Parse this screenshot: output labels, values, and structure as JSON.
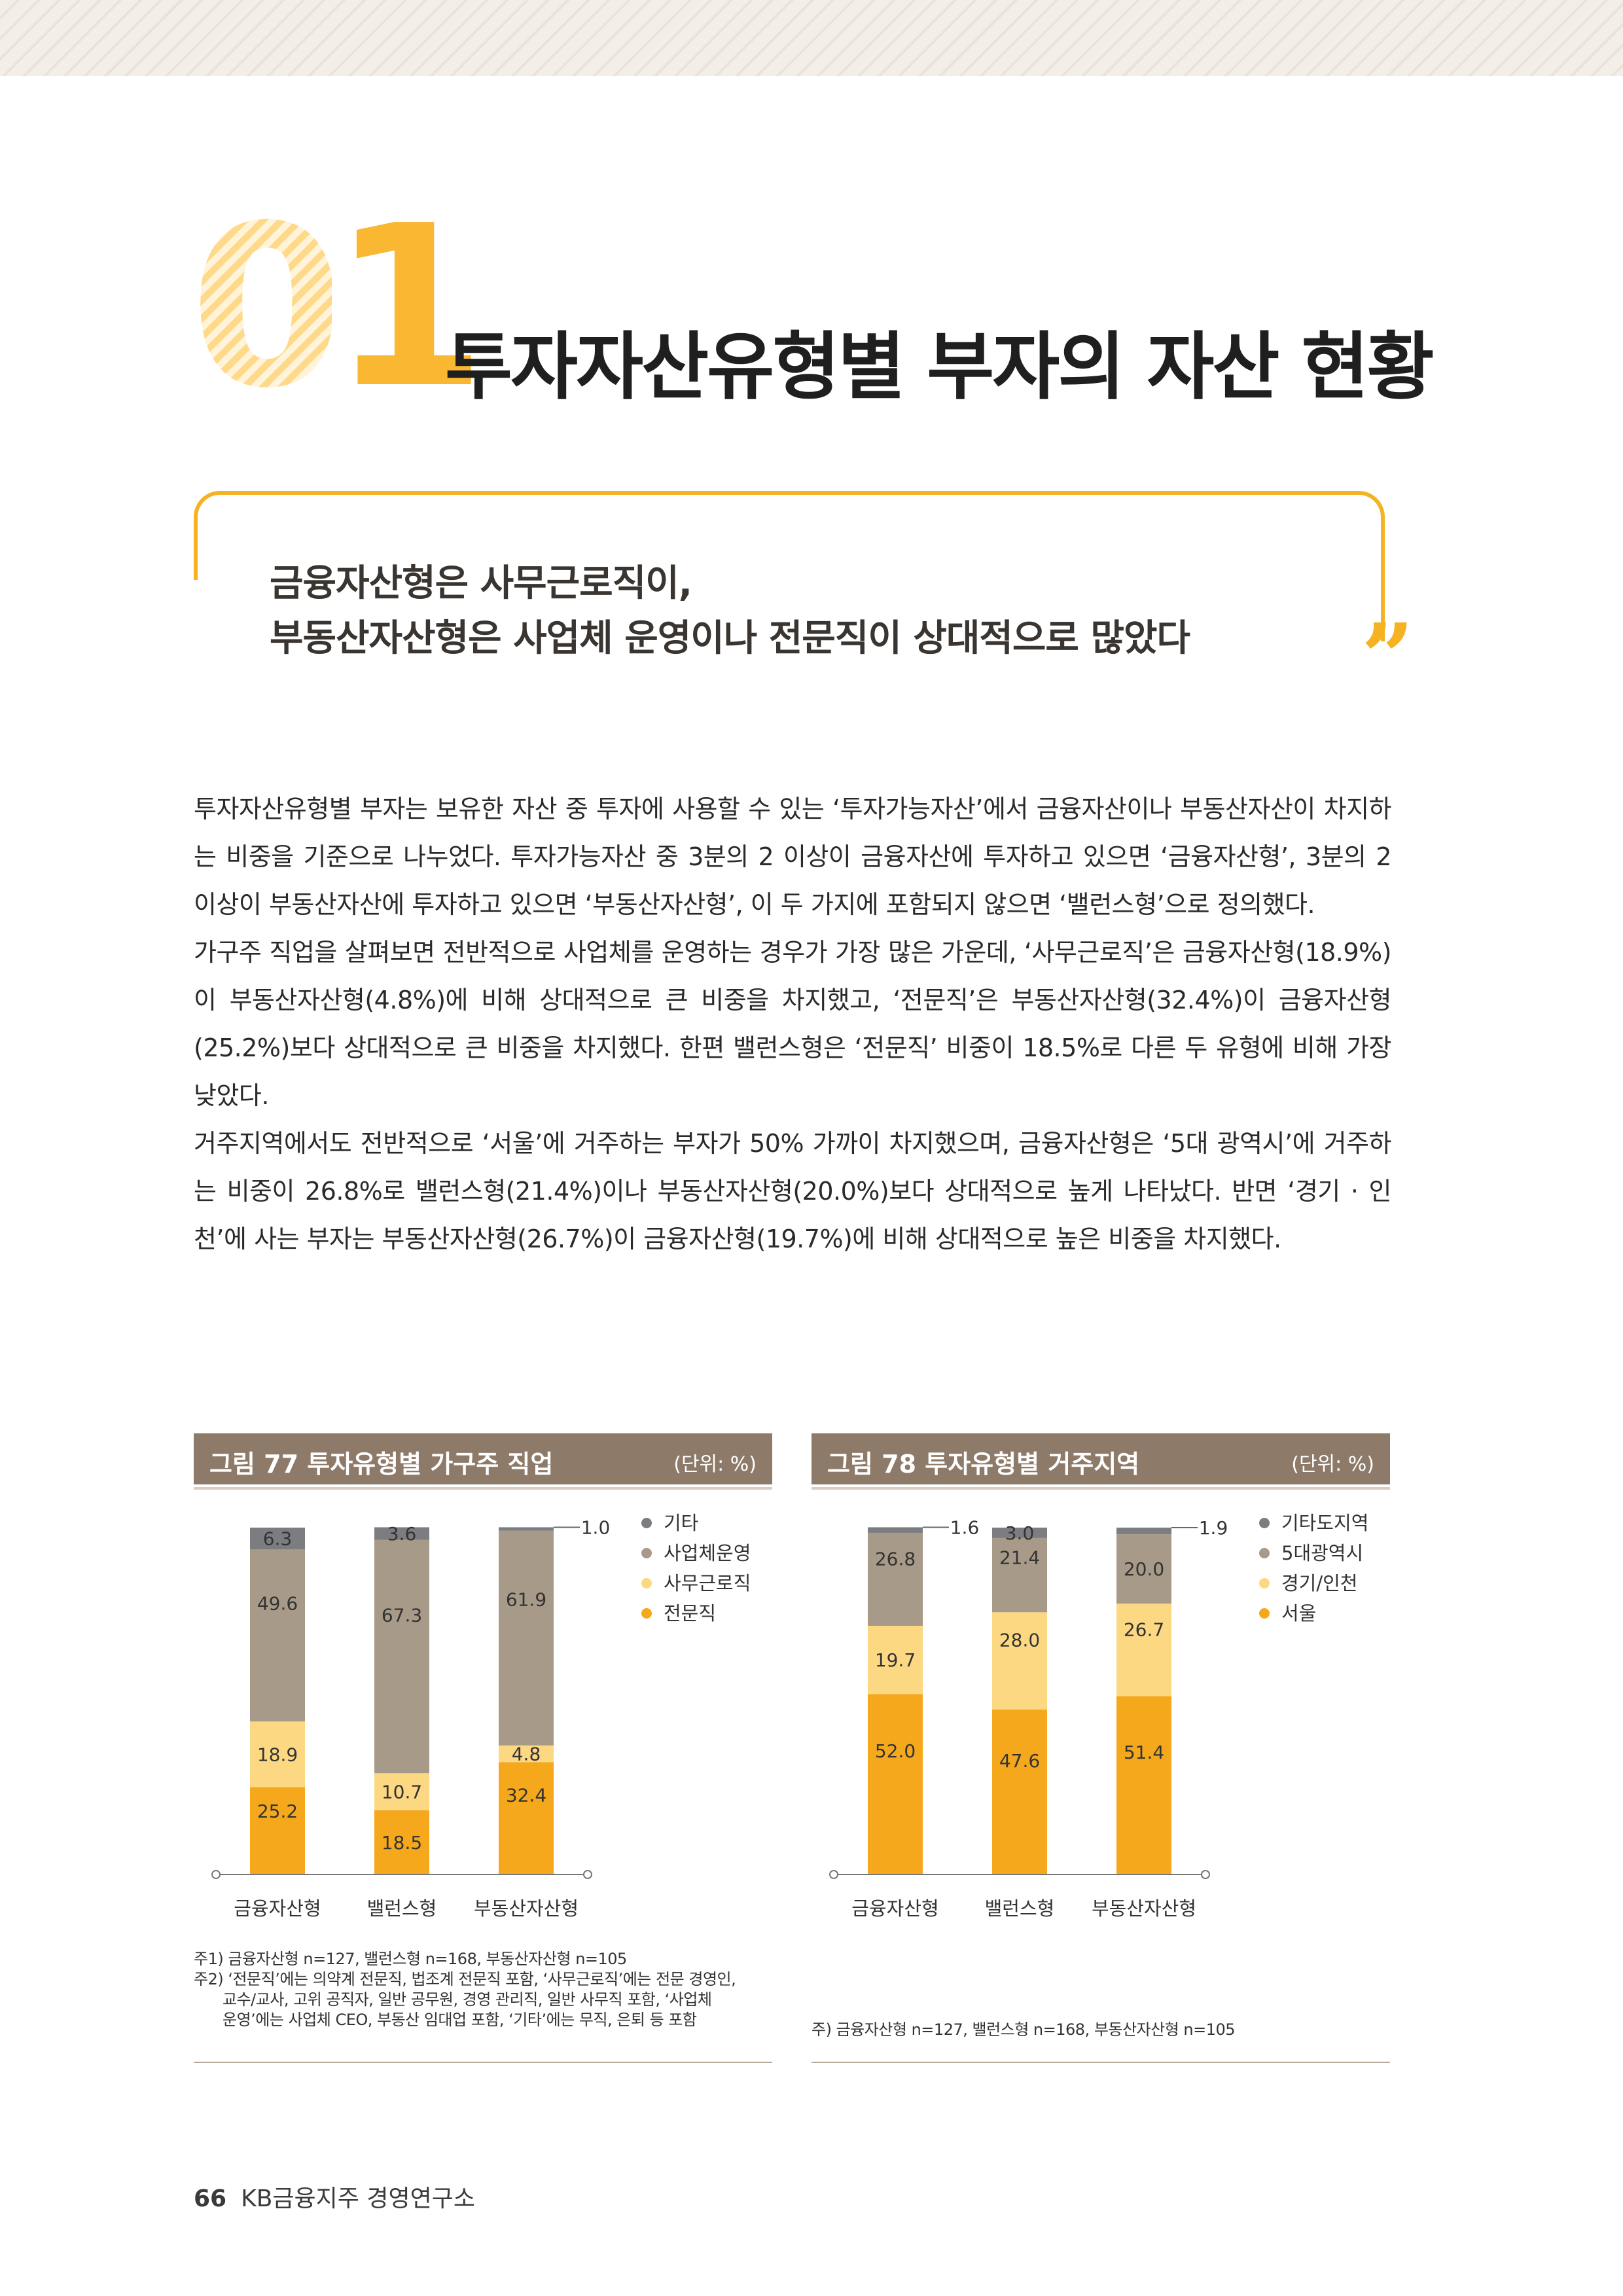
{
  "section": {
    "number_first": "0",
    "number_second": "1",
    "title": "투자자산유형별 부자의 자산 현황"
  },
  "subheadline": {
    "line1": "금융자산형은 사무근로직이,",
    "line2": "부동산자산형은 사업체 운영이나 전문직이 상대적으로 많았다",
    "quote_mark": "”"
  },
  "body": {
    "p1": "투자자산유형별 부자는 보유한 자산 중 투자에 사용할 수 있는 ‘투자가능자산’에서 금융자산이나 부동산자산이 차지하는 비중을 기준으로 나누었다. 투자가능자산 중 3분의 2 이상이 금융자산에 투자하고 있으면 ‘금융자산형’, 3분의 2 이상이 부동산자산에 투자하고 있으면 ‘부동산자산형’, 이 두 가지에 포함되지 않으면 ‘밸런스형’으로 정의했다.",
    "p2": "가구주 직업을 살펴보면 전반적으로 사업체를 운영하는 경우가 가장 많은 가운데, ‘사무근로직’은 금융자산형(18.9%)이 부동산자산형(4.8%)에 비해 상대적으로 큰 비중을 차지했고, ‘전문직’은 부동산자산형(32.4%)이 금융자산형(25.2%)보다 상대적으로 큰 비중을 차지했다. 한편 밸런스형은 ‘전문직’ 비중이 18.5%로 다른 두 유형에 비해 가장 낮았다.",
    "p3": "거주지역에서도 전반적으로 ‘서울’에 거주하는 부자가 50% 가까이 차지했으며, 금융자산형은 ‘5대 광역시’에 거주하는 비중이 26.8%로 밸런스형(21.4%)이나 부동산자산형(20.0%)보다 상대적으로 높게 나타났다. 반면 ‘경기 · 인천’에 사는 부자는 부동산자산형(26.7%)이 금융자산형(19.7%)에 비해 상대적으로 높은 비중을 차지했다."
  },
  "figure77": {
    "title": "그림 77  투자유형별 가구주 직업",
    "unit": "(단위: %)",
    "note1": "주1) 금융자산형 n=127, 밸런스형 n=168, 부동산자산형 n=105",
    "note2a": "주2) ‘전문직’에는 의약계 전문직, 법조계 전문직 포함, ‘사무근로직’에는 전문 경영인,",
    "note2b": "교수/교사, 고위 공직자, 일반 공무원, 경영 관리직, 일반 사무직 포함, ‘사업체",
    "note2c": "운영’에는 사업체 CEO, 부동산 임대업 포함, ‘기타’에는 무직, 은퇴 등 포함"
  },
  "figure78": {
    "title": "그림 78  투자유형별 거주지역",
    "unit": "(단위: %)",
    "note1": "주) 금융자산형 n=127, 밸런스형 n=168, 부동산자산형 n=105"
  },
  "footer": {
    "page": "66",
    "org": "KB금융지주 경영연구소"
  },
  "chart_data": [
    {
      "type": "bar",
      "stacked": true,
      "title": "그림 77  투자유형별 가구주 직업",
      "unit": "(단위: %)",
      "categories": [
        "금융자산형",
        "밸런스형",
        "부동산자산형"
      ],
      "series": [
        {
          "name": "전문직",
          "color": "#f5a81c",
          "values": [
            25.2,
            18.5,
            32.4
          ]
        },
        {
          "name": "사무근로직",
          "color": "#fdd883",
          "values": [
            18.9,
            10.7,
            4.8
          ]
        },
        {
          "name": "사업체운영",
          "color": "#a89a88",
          "values": [
            49.6,
            67.3,
            61.9
          ]
        },
        {
          "name": "기타",
          "color": "#7b7d80",
          "values": [
            6.3,
            3.6,
            1.0
          ]
        }
      ],
      "legend_order": [
        "기타",
        "사업체운영",
        "사무근로직",
        "전문직"
      ],
      "legend_position": "right",
      "ylim": [
        0,
        100
      ]
    },
    {
      "type": "bar",
      "stacked": true,
      "title": "그림 78  투자유형별 거주지역",
      "unit": "(단위: %)",
      "categories": [
        "금융자산형",
        "밸런스형",
        "부동산자산형"
      ],
      "series": [
        {
          "name": "서울",
          "color": "#f5a81c",
          "values": [
            52.0,
            47.6,
            51.4
          ]
        },
        {
          "name": "경기/인천",
          "color": "#fdd883",
          "values": [
            19.7,
            28.0,
            26.7
          ]
        },
        {
          "name": "5대광역시",
          "color": "#a89a88",
          "values": [
            26.8,
            21.4,
            20.0
          ]
        },
        {
          "name": "기타도지역",
          "color": "#7b7d80",
          "values": [
            1.6,
            3.0,
            1.9
          ]
        }
      ],
      "legend_order": [
        "기타도지역",
        "5대광역시",
        "경기/인천",
        "서울"
      ],
      "legend_position": "right",
      "ylim": [
        0,
        100
      ]
    }
  ]
}
